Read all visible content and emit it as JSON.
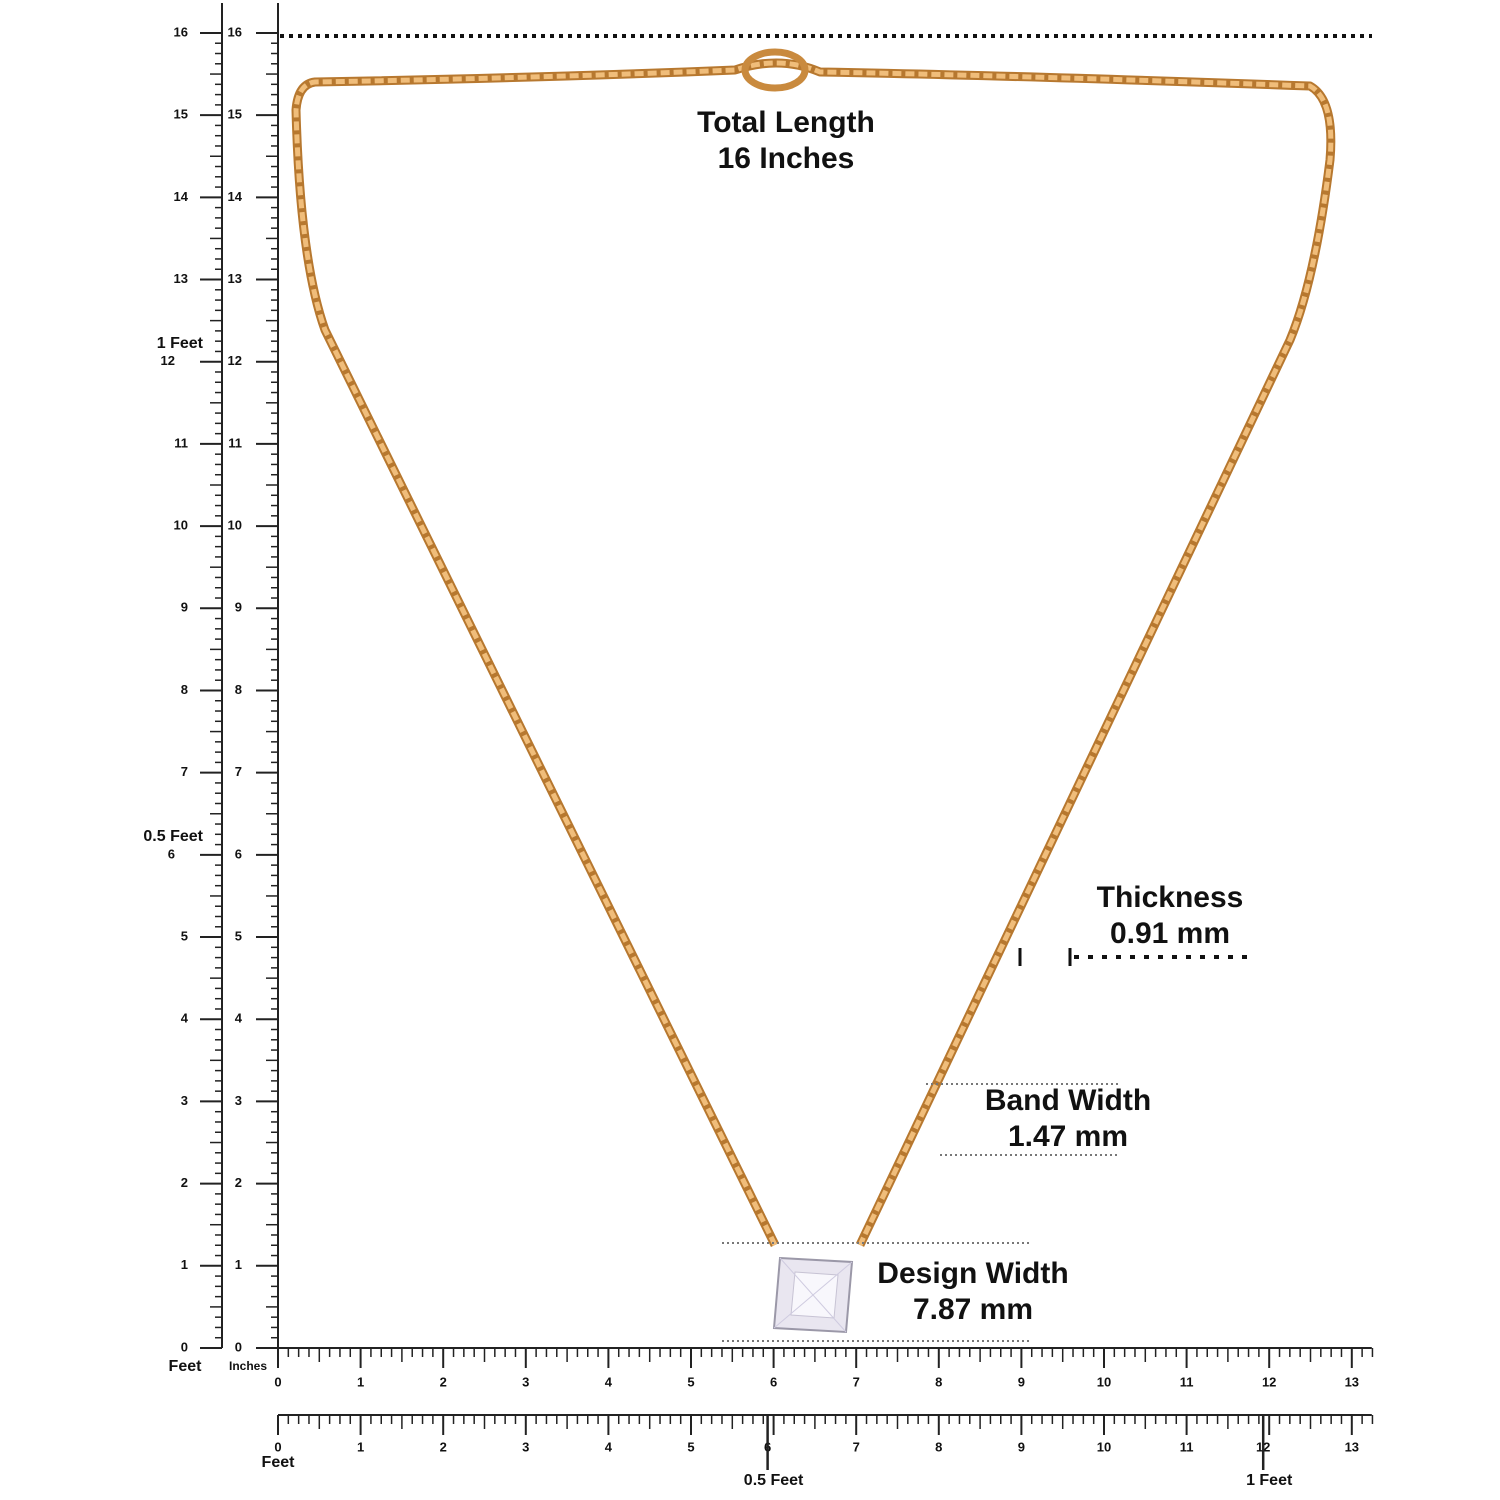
{
  "annotations": [
    {
      "title": "Total Length",
      "value": "16 Inches"
    },
    {
      "title": "Thickness",
      "value": "0.91 mm"
    },
    {
      "title": "Band Width",
      "value": "1.47 mm"
    },
    {
      "title": "Design Width",
      "value": "7.87 mm"
    }
  ],
  "vertical_ruler": {
    "outer_labels": [
      0,
      1,
      2,
      3,
      4,
      5,
      6,
      7,
      8,
      9,
      10,
      11,
      12,
      13,
      14,
      15,
      16
    ],
    "outer_unit": "Feet",
    "feet_marks": [
      {
        "value": 6,
        "label": "0.5 Feet"
      },
      {
        "value": 12,
        "label": "1 Feet"
      }
    ],
    "inner_labels": [
      0,
      1,
      2,
      3,
      4,
      5,
      6,
      7,
      8,
      9,
      10,
      11,
      12,
      13,
      14,
      15,
      16
    ],
    "inner_unit": "Inches"
  },
  "horizontal_ruler": {
    "labels": [
      0,
      1,
      2,
      3,
      4,
      5,
      6,
      7,
      8,
      9,
      10,
      11,
      12,
      13
    ]
  },
  "feet_ruler": {
    "labels": [
      0,
      1,
      2,
      3,
      4,
      5,
      6,
      7,
      8,
      9,
      10,
      11,
      12,
      13
    ],
    "unit": "Feet",
    "feet_marks": [
      {
        "value": 6,
        "label": "0.5 Feet"
      },
      {
        "value": 12,
        "label": "1 Feet"
      }
    ]
  }
}
